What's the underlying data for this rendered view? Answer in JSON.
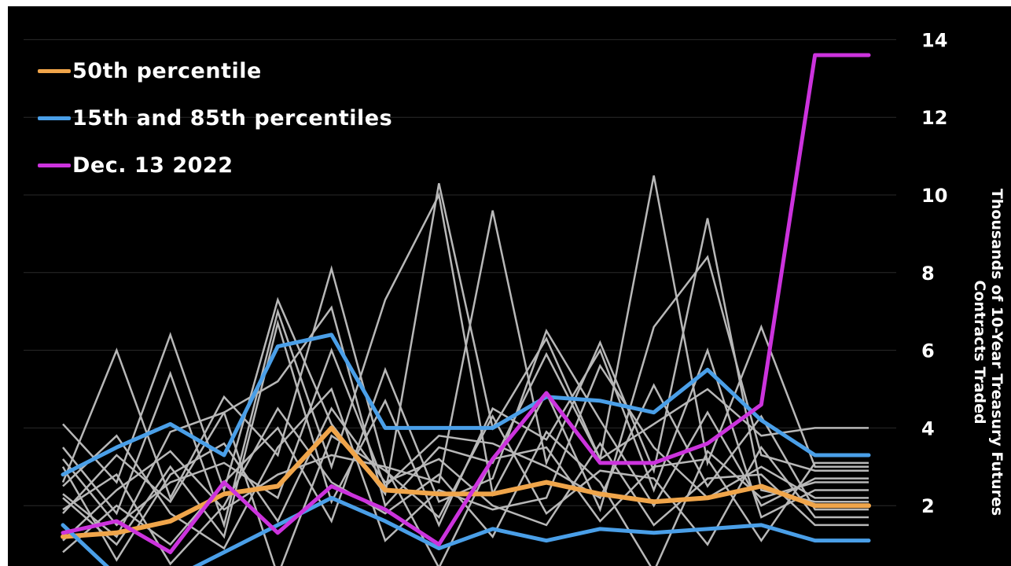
{
  "chart_data": {
    "type": "line",
    "title": "",
    "xlabel": "",
    "ylabel": "Thousands of 10-Year Treasury Futures Contracts Traded",
    "ylim": [
      0,
      14.5
    ],
    "yticks": [
      2,
      4,
      6,
      8,
      10,
      12,
      14
    ],
    "y_axis_position": "right",
    "grid": true,
    "legend_position": "top-left",
    "x": [
      0,
      1,
      2,
      3,
      4,
      5,
      6,
      7,
      8,
      9,
      10,
      11,
      12,
      13,
      14,
      15
    ],
    "series": [
      {
        "name": "50th percentile",
        "color": "#f0a54a",
        "width": 6,
        "values": [
          1.2,
          1.3,
          1.6,
          2.3,
          2.5,
          4.0,
          2.4,
          2.3,
          2.3,
          2.6,
          2.3,
          2.1,
          2.2,
          2.5,
          2.0,
          2.0
        ]
      },
      {
        "name": "15th and 85th percentiles",
        "color": "#4a9fe8",
        "width": 5,
        "values": [
          2.8,
          3.5,
          4.1,
          3.3,
          6.1,
          6.4,
          4.0,
          4.0,
          4.0,
          4.8,
          4.7,
          4.4,
          5.5,
          4.2,
          3.3,
          3.3
        ]
      },
      {
        "name": "",
        "color": "#4a9fe8",
        "width": 5,
        "values": [
          1.5,
          0.2,
          0.1,
          0.8,
          1.5,
          2.2,
          1.6,
          0.9,
          1.4,
          1.1,
          1.4,
          1.3,
          1.4,
          1.5,
          1.1,
          1.1
        ]
      },
      {
        "name": "Dec. 13 2022",
        "color": "#cc33dd",
        "width": 5,
        "values": [
          1.3,
          1.6,
          0.8,
          2.6,
          1.3,
          2.5,
          1.9,
          1.0,
          3.2,
          4.9,
          3.1,
          3.1,
          3.6,
          4.6,
          13.6,
          13.6
        ]
      }
    ],
    "background_series": [
      [
        4.1,
        2.6,
        6.4,
        2.4,
        7.3,
        4.1,
        2.3,
        10.3,
        4.0,
        6.3,
        3.2,
        10.5,
        3.1,
        6.6,
        3.0,
        3.0
      ],
      [
        2.6,
        6.0,
        2.2,
        4.8,
        3.3,
        8.1,
        3.0,
        2.6,
        9.6,
        3.1,
        6.2,
        2.9,
        9.4,
        2.4,
        2.1,
        2.1
      ],
      [
        3.5,
        1.8,
        5.4,
        1.5,
        7.0,
        3.0,
        7.3,
        10.0,
        2.3,
        4.9,
        1.9,
        6.6,
        8.4,
        3.3,
        2.9,
        2.9
      ],
      [
        1.8,
        3.3,
        2.1,
        4.4,
        5.2,
        7.1,
        2.0,
        3.5,
        3.1,
        5.9,
        3.2,
        4.1,
        5.0,
        3.8,
        4.0,
        4.0
      ],
      [
        2.2,
        1.0,
        3.0,
        1.2,
        6.7,
        2.1,
        4.7,
        1.5,
        4.5,
        3.7,
        6.0,
        2.4,
        6.0,
        1.7,
        2.4,
        2.4
      ],
      [
        3.2,
        1.5,
        2.6,
        3.1,
        2.2,
        6.0,
        2.5,
        3.8,
        3.6,
        3.0,
        2.2,
        5.1,
        2.5,
        4.3,
        1.9,
        1.9
      ],
      [
        0.8,
        2.0,
        1.0,
        2.6,
        4.0,
        1.6,
        5.5,
        2.1,
        2.7,
        6.5,
        4.2,
        2.0,
        4.4,
        2.0,
        2.7,
        2.7
      ],
      [
        2.5,
        3.8,
        1.8,
        0.9,
        3.5,
        5.0,
        1.1,
        2.4,
        1.9,
        2.2,
        5.6,
        3.5,
        2.2,
        3.0,
        2.2,
        2.2
      ],
      [
        1.1,
        2.4,
        3.4,
        1.9,
        2.8,
        3.3,
        3.0,
        0.4,
        3.2,
        3.5,
        1.6,
        3.0,
        3.2,
        1.1,
        3.1,
        3.1
      ],
      [
        3.0,
        0.6,
        2.8,
        3.6,
        1.6,
        4.5,
        2.6,
        3.2,
        2.0,
        1.5,
        3.6,
        1.5,
        2.7,
        2.8,
        1.5,
        1.5
      ],
      [
        1.9,
        2.8,
        0.5,
        2.0,
        4.5,
        2.6,
        1.8,
        2.8,
        1.2,
        3.9,
        2.6,
        0.3,
        3.4,
        2.2,
        2.6,
        2.6
      ],
      [
        2.3,
        1.2,
        3.9,
        4.4,
        0.2,
        3.8,
        2.9,
        1.7,
        4.3,
        1.8,
        2.9,
        2.7,
        1.0,
        3.5,
        1.7,
        1.7
      ]
    ]
  }
}
